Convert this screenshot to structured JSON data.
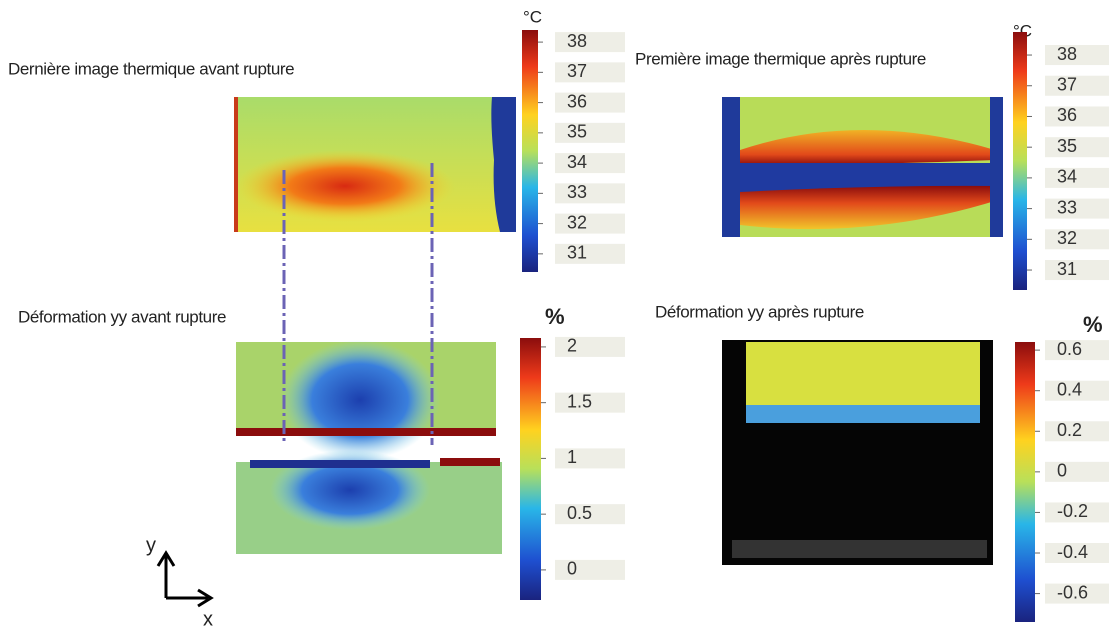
{
  "panels": [
    {
      "title": "Dernière image thermique avant rupture",
      "unit": "°C",
      "ticks": [
        31,
        32,
        33,
        34,
        35,
        36,
        37,
        38
      ],
      "lim": [
        30.4,
        38.4
      ]
    },
    {
      "title": "Première image thermique après rupture",
      "unit": "°C",
      "ticks": [
        31,
        32,
        33,
        34,
        35,
        36,
        37,
        38
      ],
      "lim": [
        30.35,
        38.75
      ]
    },
    {
      "title": "Déformation yy avant rupture",
      "unit": "%",
      "ticks": [
        0,
        0.5,
        1,
        1.5,
        2
      ],
      "lim": [
        -0.27,
        2.08
      ]
    },
    {
      "title": "Déformation yy après rupture",
      "unit": "%",
      "ticks": [
        -0.6,
        -0.4,
        -0.2,
        0,
        0.2,
        0.4,
        0.6
      ],
      "lim": [
        -0.74,
        0.64
      ]
    }
  ],
  "axes": {
    "y": "y",
    "x": "x"
  }
}
